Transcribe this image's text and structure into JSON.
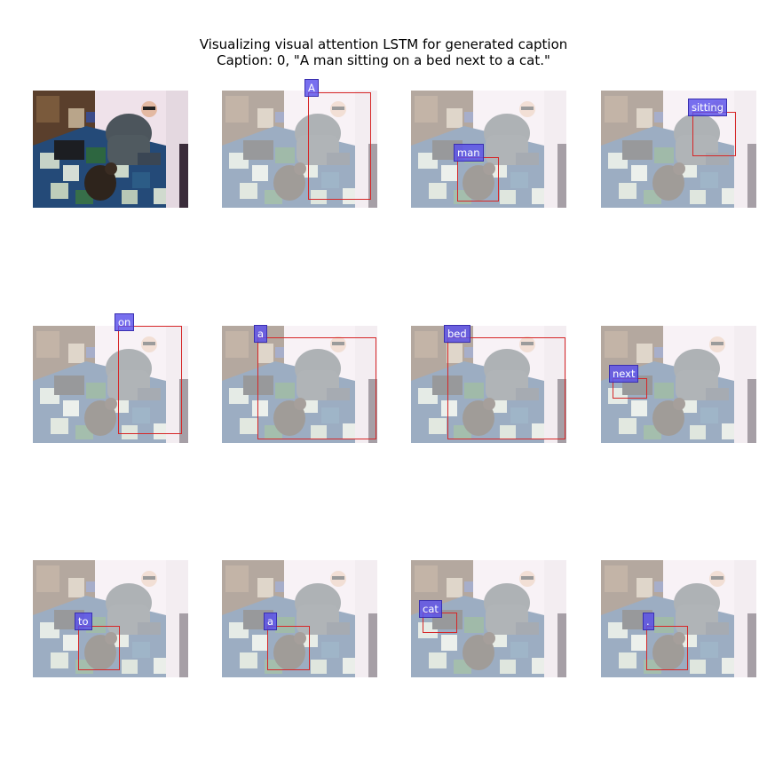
{
  "figure": {
    "title_line1": "Visualizing visual attention LSTM for generated caption",
    "title_line2": "Caption: 0, \"A man sitting on a bed next to a cat.\""
  },
  "panels": [
    {
      "word": "",
      "original": true
    },
    {
      "word": "A"
    },
    {
      "word": "man"
    },
    {
      "word": "sitting"
    },
    {
      "word": "on"
    },
    {
      "word": "a"
    },
    {
      "word": "bed"
    },
    {
      "word": "next"
    },
    {
      "word": "to"
    },
    {
      "word": "a"
    },
    {
      "word": "cat"
    },
    {
      "word": "."
    }
  ]
}
